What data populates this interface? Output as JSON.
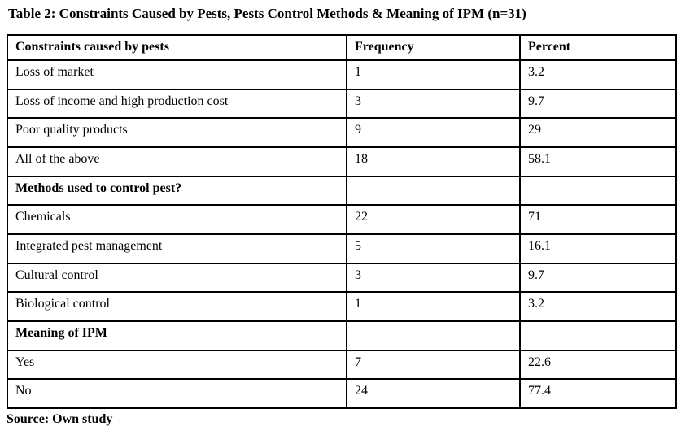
{
  "page": {
    "title": "Table 2: Constraints Caused by Pests, Pests Control Methods & Meaning of IPM (n=31)",
    "source": "Source: Own study"
  },
  "table": {
    "columns": [
      "Constraints caused by pests",
      "Frequency",
      "Percent"
    ],
    "rows": [
      {
        "label": "Loss of market",
        "frequency": "1",
        "percent": "3.2"
      },
      {
        "label": "Loss of income and high production cost",
        "frequency": "3",
        "percent": "9.7"
      },
      {
        "label": "Poor quality products",
        "frequency": "9",
        "percent": "29"
      },
      {
        "label": "All of the above",
        "frequency": "18",
        "percent": "58.1"
      },
      {
        "label": "Methods used to control pest?",
        "frequency": "",
        "percent": "",
        "section_header": true
      },
      {
        "label": "Chemicals",
        "frequency": "22",
        "percent": "71"
      },
      {
        "label": "Integrated pest management",
        "frequency": "5",
        "percent": "16.1"
      },
      {
        "label": "Cultural control",
        "frequency": "3",
        "percent": "9.7"
      },
      {
        "label": "Biological control",
        "frequency": "1",
        "percent": "3.2"
      },
      {
        "label": "Meaning of IPM",
        "frequency": "",
        "percent": "",
        "section_header": true
      },
      {
        "label": "Yes",
        "frequency": "7",
        "percent": "22.6"
      },
      {
        "label": "No",
        "frequency": "24",
        "percent": "77.4"
      }
    ]
  }
}
